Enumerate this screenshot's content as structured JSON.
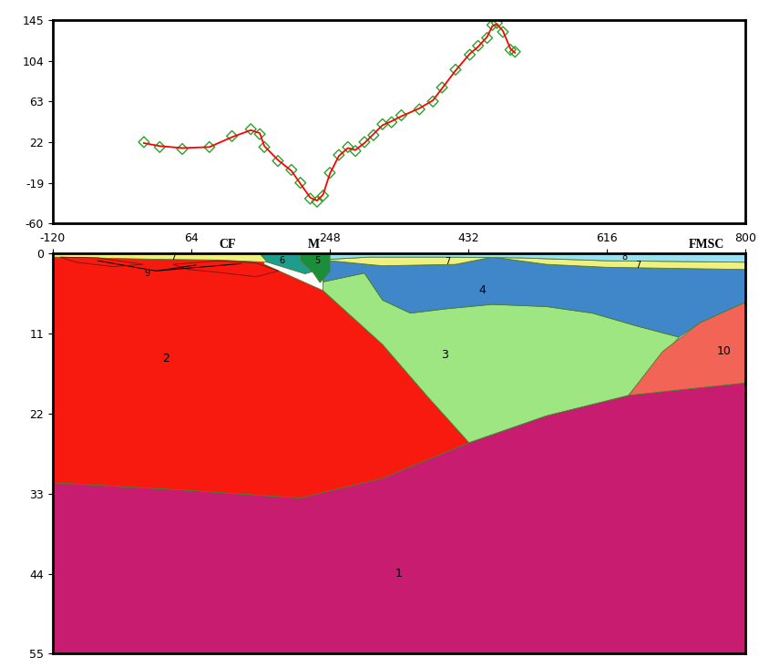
{
  "chart_data": [
    {
      "type": "line",
      "xlim": [
        -120,
        800
      ],
      "ylim": [
        -60,
        145
      ],
      "yticks": [
        145,
        104,
        63,
        22,
        -19,
        -60
      ],
      "tick_labels": "y",
      "series": [
        {
          "type": "scatter",
          "color": "#2aa02a",
          "marker": "diamond",
          "x": [
            1,
            22,
            52,
            88,
            118,
            143,
            155,
            161,
            179,
            197,
            209,
            222,
            231,
            239,
            248,
            260,
            272,
            282,
            294,
            306,
            318,
            330,
            343,
            367,
            385,
            397,
            415,
            434,
            445,
            457,
            464,
            470,
            478,
            488,
            494
          ],
          "values": [
            22,
            17,
            15,
            17,
            28,
            35,
            30,
            17,
            3,
            -6,
            -19,
            -35,
            -38,
            -32,
            -9,
            9,
            17,
            13,
            22,
            29,
            40,
            42,
            49,
            55,
            63,
            77,
            95,
            110,
            119,
            127,
            140,
            142,
            133,
            115,
            113
          ]
        },
        {
          "type": "line",
          "color": "#ff0000",
          "line_style": "solid",
          "x": [
            1,
            22,
            52,
            88,
            118,
            143,
            155,
            161,
            179,
            197,
            209,
            222,
            231,
            239,
            248,
            260,
            272,
            282,
            294,
            306,
            318,
            330,
            343,
            367,
            385,
            397,
            415,
            434,
            445,
            457,
            464,
            470,
            478,
            488,
            494
          ],
          "values": [
            21,
            18,
            16,
            17,
            27,
            34,
            31,
            18,
            4,
            -7,
            -20,
            -34,
            -37,
            -31,
            -10,
            8,
            16,
            14,
            21,
            30,
            39,
            43,
            48,
            56,
            64,
            76,
            94,
            111,
            118,
            128,
            139,
            141,
            134,
            116,
            112
          ]
        }
      ]
    },
    {
      "type": "polygons",
      "xlim": [
        -120,
        800
      ],
      "xticks": [
        -120,
        64,
        248,
        432,
        616,
        800
      ],
      "ylim": [
        55,
        0
      ],
      "yticks": [
        0,
        11,
        22,
        33,
        44,
        55
      ],
      "annotations": [
        {
          "text": "CF",
          "x": 112
        },
        {
          "text": "M",
          "x": 227
        },
        {
          "text": "FMSC",
          "x": 748
        }
      ],
      "bodies": [
        {
          "label": "1",
          "color": "#c71c70",
          "polygons": [
            [
              [
                -120,
                31.5
              ],
              [
                50,
                32.5
              ],
              [
                209,
                33.6
              ],
              [
                318,
                30.9
              ],
              [
                433,
                26
              ],
              [
                536,
                22.3
              ],
              [
                645,
                19.5
              ],
              [
                800,
                17.8
              ],
              [
                800,
                55
              ],
              [
                -120,
                55
              ]
            ]
          ]
        },
        {
          "label": "2",
          "color": "#f81a0e",
          "polygons": [
            [
              [
                -120,
                0
              ],
              [
                155,
                0
              ],
              [
                161,
                1.5
              ],
              [
                239,
                5.1
              ],
              [
                318,
                12.5
              ],
              [
                379,
                19.8
              ],
              [
                433,
                26
              ],
              [
                318,
                30.9
              ],
              [
                209,
                33.6
              ],
              [
                50,
                32.5
              ],
              [
                -120,
                31.5
              ]
            ]
          ]
        },
        {
          "label": "3",
          "color": "#9ee682",
          "polygons": [
            [
              [
                239,
                5.1
              ],
              [
                239,
                3.9
              ],
              [
                294,
                2.7
              ],
              [
                318,
                6.4
              ],
              [
                355,
                8.2
              ],
              [
                403,
                7.6
              ],
              [
                464,
                7
              ],
              [
                536,
                7.3
              ],
              [
                597,
                8.2
              ],
              [
                657,
                10
              ],
              [
                712,
                11.5
              ],
              [
                645,
                19.5
              ],
              [
                536,
                22.3
              ],
              [
                433,
                26
              ],
              [
                379,
                19.8
              ],
              [
                318,
                12.5
              ]
            ]
          ]
        },
        {
          "label": "10",
          "color": "#f26455",
          "polygons": [
            [
              [
                645,
                19.5
              ],
              [
                690,
                13.5
              ],
              [
                740,
                9.5
              ],
              [
                800,
                6.7
              ],
              [
                800,
                17.8
              ]
            ]
          ]
        },
        {
          "label": "4",
          "color": "#3f87c8",
          "polygons": [
            [
              [
                239,
                0.9
              ],
              [
                318,
                1.7
              ],
              [
                415,
                1.5
              ],
              [
                464,
                0.5
              ],
              [
                536,
                1.5
              ],
              [
                616,
                1.9
              ],
              [
                800,
                2.2
              ],
              [
                800,
                6.7
              ],
              [
                740,
                9.5
              ],
              [
                712,
                11.5
              ],
              [
                657,
                10
              ],
              [
                597,
                8.2
              ],
              [
                536,
                7.3
              ],
              [
                464,
                7
              ],
              [
                403,
                7.6
              ],
              [
                355,
                8.2
              ],
              [
                318,
                6.4
              ],
              [
                294,
                2.7
              ],
              [
                239,
                3.9
              ]
            ]
          ]
        },
        {
          "label": "7",
          "color": "#f0f080",
          "polygons": [
            [
              [
                -120,
                0
              ],
              [
                155,
                0
              ],
              [
                165,
                1.2
              ],
              [
                100,
                0.9
              ],
              [
                20,
                0.8
              ],
              [
                -120,
                0.5
              ]
            ],
            [
              [
                248,
                0.8
              ],
              [
                300,
                0.5
              ],
              [
                400,
                0.5
              ],
              [
                500,
                0.6
              ],
              [
                616,
                1.0
              ],
              [
                800,
                1.2
              ],
              [
                800,
                2.2
              ],
              [
                616,
                1.9
              ],
              [
                536,
                1.5
              ],
              [
                464,
                0.5
              ],
              [
                415,
                1.5
              ],
              [
                318,
                1.7
              ],
              [
                239,
                0.9
              ]
            ]
          ]
        },
        {
          "label": "8",
          "color": "#99e0f0",
          "polygons": [
            [
              [
                248,
                0
              ],
              [
                800,
                0
              ],
              [
                800,
                1.2
              ],
              [
                616,
                1.0
              ],
              [
                500,
                0.6
              ],
              [
                400,
                0.5
              ],
              [
                300,
                0.5
              ],
              [
                248,
                0.8
              ]
            ]
          ]
        },
        {
          "label": "6",
          "color": "#1e9c8c",
          "polygons": [
            [
              [
                155,
                0
              ],
              [
                210,
                0
              ],
              [
                210,
                1.0
              ],
              [
                225,
                2.5
              ],
              [
                215,
                2.8
              ],
              [
                190,
                2.0
              ],
              [
                165,
                1.2
              ]
            ]
          ]
        },
        {
          "label": "5",
          "color": "#1b8e3c",
          "polygons": [
            [
              [
                210,
                0
              ],
              [
                248,
                0
              ],
              [
                248,
                2.5
              ],
              [
                235,
                4.0
              ],
              [
                225,
                2.5
              ],
              [
                210,
                1.0
              ]
            ]
          ]
        },
        {
          "label": "9",
          "color": "#f81a0e",
          "polygons": [
            [
              [
                -110,
                0.5
              ],
              [
                -60,
                0.6
              ],
              [
                0,
                1.5
              ],
              [
                -40,
                1.8
              ],
              [
                -90,
                1.2
              ]
            ],
            [
              [
                40,
                1.5
              ],
              [
                100,
                1.0
              ],
              [
                150,
                1.3
              ],
              [
                180,
                2.4
              ],
              [
                150,
                3.2
              ],
              [
                100,
                2.6
              ],
              [
                60,
                2.2
              ]
            ]
          ]
        }
      ]
    }
  ]
}
